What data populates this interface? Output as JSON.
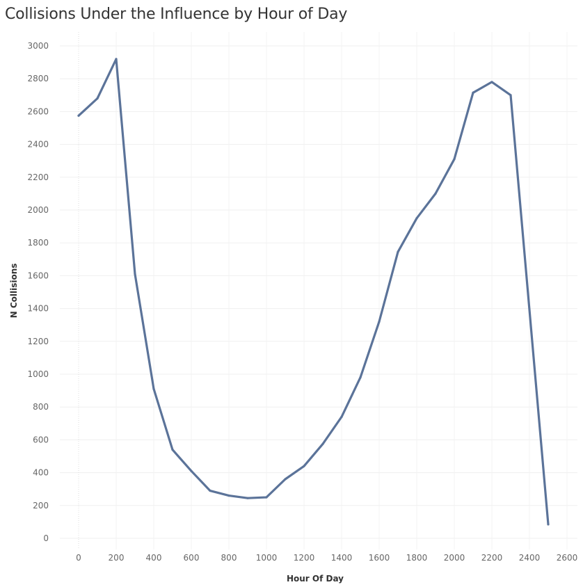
{
  "chart_data": {
    "type": "line",
    "title": "Collisions Under the Influence by Hour of Day",
    "xlabel": "Hour Of Day",
    "ylabel": "N Collisions",
    "xlim": [
      -100,
      2650
    ],
    "ylim": [
      -50,
      3050
    ],
    "x_ticks": [
      0,
      200,
      400,
      600,
      800,
      1000,
      1200,
      1400,
      1600,
      1800,
      2000,
      2200,
      2400,
      2600
    ],
    "y_ticks": [
      0,
      200,
      400,
      600,
      800,
      1000,
      1200,
      1400,
      1600,
      1800,
      2000,
      2200,
      2400,
      2600,
      2800,
      3000
    ],
    "grid": true,
    "line_color": "#5b7399",
    "series": [
      {
        "x": [
          0,
          100,
          200,
          300,
          400,
          500,
          600,
          700,
          800,
          900,
          1000,
          1100,
          1200,
          1300,
          1400,
          1500,
          1600,
          1700,
          1800,
          1900,
          2000,
          2100,
          2200,
          2300,
          2500
        ],
        "values": [
          2575,
          2680,
          2920,
          1610,
          910,
          540,
          410,
          290,
          260,
          245,
          250,
          360,
          440,
          575,
          740,
          980,
          1320,
          1745,
          1950,
          2100,
          2310,
          2715,
          2780,
          2700,
          85
        ]
      }
    ]
  }
}
